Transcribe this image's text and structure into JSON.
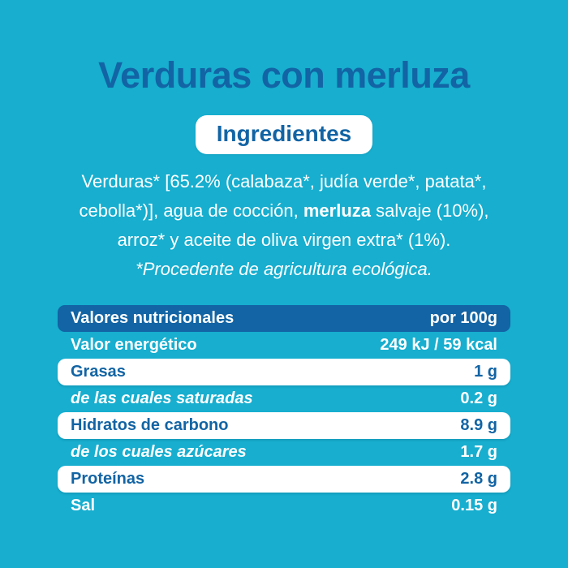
{
  "page": {
    "colors": {
      "bg": "#17aecf",
      "accent": "#1264a4",
      "text_on_bg": "#ffffff"
    }
  },
  "title": "Verduras con merluza",
  "ingredients": {
    "badge_label": "Ingredientes",
    "line1": "Verduras* [65.2% (calabaza*, judía verde*, patata*,",
    "line2_pre": "cebolla*)], agua de cocción, ",
    "line2_bold": "merluza",
    "line2_post": " salvaje (10%),",
    "line3": "arroz* y aceite de oliva virgen extra* (1%).",
    "note": "*Procedente de agricultura ecológica."
  },
  "nutrition_table": {
    "header": {
      "label": "Valores nutricionales",
      "value": "por 100g"
    },
    "rows": [
      {
        "label": "Valor energético",
        "value": "249 kJ / 59 kcal",
        "style": "plain"
      },
      {
        "label": "Grasas",
        "value": "1 g",
        "style": "highlight"
      },
      {
        "label": "de las cuales saturadas",
        "value": "0.2 g",
        "style": "sub"
      },
      {
        "label": "Hidratos de carbono",
        "value": "8.9 g",
        "style": "highlight"
      },
      {
        "label": "de los cuales azúcares",
        "value": "1.7 g",
        "style": "sub"
      },
      {
        "label": "Proteínas",
        "value": "2.8 g",
        "style": "highlight"
      },
      {
        "label": "Sal",
        "value": "0.15 g",
        "style": "plain"
      }
    ]
  }
}
